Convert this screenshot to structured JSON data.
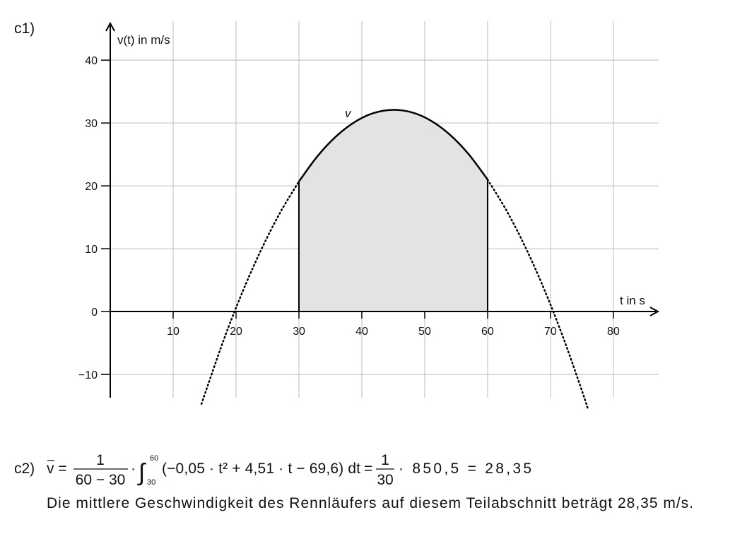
{
  "task_label": "c1)",
  "chart_data": {
    "type": "line",
    "y_label": "v(t) in m/s",
    "x_label": "t in s",
    "curve_label": "v",
    "x": [
      14.5,
      18,
      21,
      24,
      27,
      30,
      33,
      36,
      39,
      42,
      45,
      48,
      51,
      54,
      57,
      60,
      63,
      66,
      69,
      72,
      75,
      76
    ],
    "values": [
      -14.7,
      -4.62,
      3.06,
      9.84,
      15.72,
      20.7,
      24.78,
      27.96,
      30.24,
      31.62,
      32.1,
      31.68,
      30.36,
      28.14,
      25.02,
      21.0,
      16.08,
      10.26,
      3.54,
      -4.08,
      -12.6,
      -15.64
    ],
    "color": "#000000",
    "shade_color": "#e3e3e3",
    "highlight": [
      30,
      60
    ],
    "xlim": [
      0,
      87.2
    ],
    "ylim": [
      -13.7,
      46.2
    ],
    "xticks": [
      10,
      20,
      30,
      40,
      50,
      60,
      70,
      80
    ],
    "yticks": [
      {
        "value": -10,
        "label": "−10"
      },
      0,
      10,
      20,
      30,
      40
    ],
    "grid": true
  },
  "solution": {
    "label": "c2)",
    "lhs": "v =",
    "frac1_num": "1",
    "frac1_den": "60 − 30",
    "dot": "·",
    "int_upper": "60",
    "int_lower": "30",
    "integrand": "(−0,05 · t² + 4,51 · t − 69,6) dt",
    "eq": "=",
    "frac2_num": "1",
    "frac2_den": "30",
    "rest": "· 850,5 = 28,35",
    "sentence": "Die mittlere Geschwindigkeit des Rennläufers auf diesem Teilabschnitt beträgt 28,35 m/s."
  }
}
